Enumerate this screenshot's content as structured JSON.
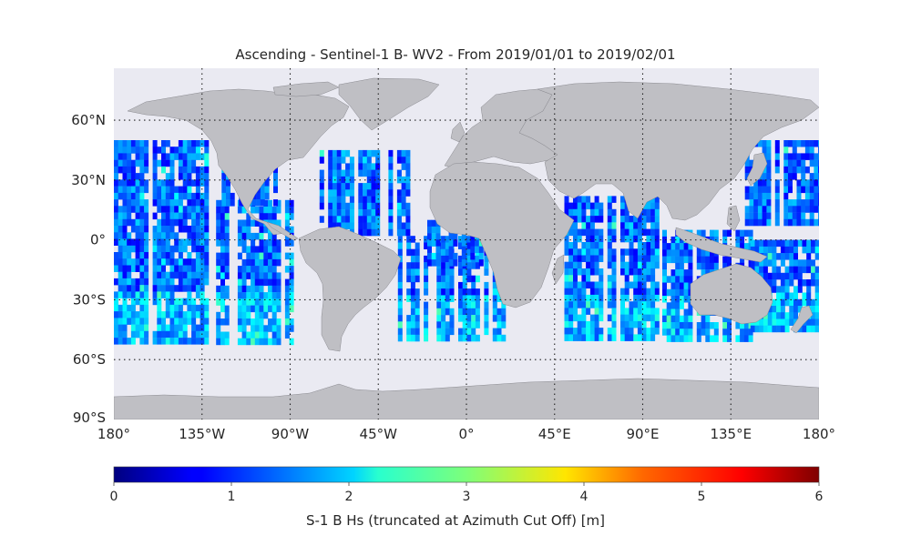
{
  "title": "Ascending - Sentinel-1 B- WV2 - From 2019/01/01 to 2019/02/01",
  "map": {
    "lon_ticks": [
      {
        "lon": -180,
        "label": "180°"
      },
      {
        "lon": -135,
        "label": "135°W"
      },
      {
        "lon": -90,
        "label": "90°W"
      },
      {
        "lon": -45,
        "label": "45°W"
      },
      {
        "lon": 0,
        "label": "0°"
      },
      {
        "lon": 45,
        "label": "45°E"
      },
      {
        "lon": 90,
        "label": "90°E"
      },
      {
        "lon": 135,
        "label": "135°E"
      },
      {
        "lon": 180,
        "label": "180°"
      }
    ],
    "lat_ticks": [
      {
        "lat": 60,
        "label": "60°N"
      },
      {
        "lat": 30,
        "label": "30°N"
      },
      {
        "lat": 0,
        "label": "0°"
      },
      {
        "lat": -30,
        "label": "30°S"
      },
      {
        "lat": -60,
        "label": "60°S"
      },
      {
        "lat": -90,
        "label": "90°S"
      }
    ],
    "lon_range": [
      -180,
      180
    ],
    "lat_range": [
      -90,
      86
    ],
    "ocean_color": "#eaeaf2",
    "land_color": "#bfbfc4",
    "grid": "dotted",
    "data_lat_range": [
      -50,
      50
    ]
  },
  "colorbar": {
    "label": "S-1 B Hs (truncated at Azimuth Cut Off) [m]",
    "min": 0,
    "max": 6,
    "ticks": [
      "0",
      "1",
      "2",
      "3",
      "4",
      "5",
      "6"
    ],
    "colormap": "jet"
  }
}
